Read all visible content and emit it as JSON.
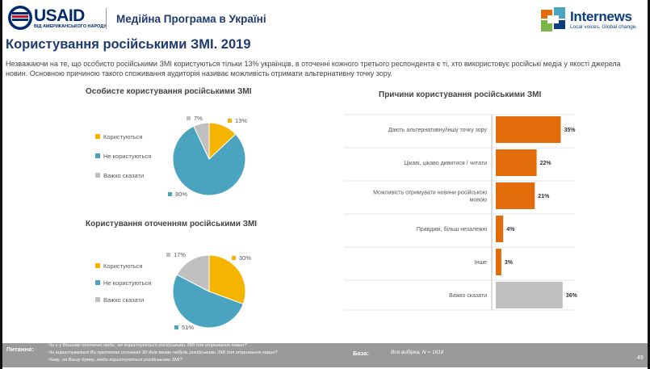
{
  "header": {
    "usaid_name": "USAID",
    "usaid_sub": "ВІД АМЕРИКАНСЬКОГО НАРОДУ",
    "program": "Медійна Програма в Україні",
    "partner_name": "Internews",
    "partner_tagline": "Local voices. Global change."
  },
  "title": "Користування російськими ЗМІ. 2019",
  "intro": "Незважаючи на те, що особисто російськими ЗМІ користуються тільки 13% українців, в оточенні кожного третього респондента є ті, хто використовує російські медіа у якості джерела новин. Основною причиною такого споживання аудиторія називає можливість отримати альтернативну точку зору.",
  "colors": {
    "use": "#f5b400",
    "not_use": "#4aa3bf",
    "hard": "#c0c0c0",
    "bar": "#e36c0a",
    "bar_hard": "#c0c0c0",
    "title": "#1f3a6e"
  },
  "chart_data": [
    {
      "type": "pie",
      "title": "Особисте користування російськими ЗМІ",
      "categories": [
        "Користуються",
        "Не користуються",
        "Важко сказати"
      ],
      "values": [
        13,
        80,
        7
      ],
      "labels": [
        "13%",
        "80%",
        "7%"
      ],
      "legend_position": "left"
    },
    {
      "type": "pie",
      "title": "Користування оточенням російськими ЗМІ",
      "categories": [
        "Користуються",
        "Не користуються",
        "Важко сказати"
      ],
      "values": [
        30,
        51,
        17
      ],
      "labels": [
        "30%",
        "51%",
        "17%"
      ],
      "legend_position": "left"
    },
    {
      "type": "bar",
      "orientation": "horizontal",
      "title": "Причини користування російськими ЗМІ",
      "categories": [
        "Дають альтернативну/іншу точку зору",
        "Цікаві, цікаво дивитися / читати",
        "Можливість отримувати новини російською мовою",
        "Правдиві, більш незалежні",
        "Інше",
        "Важко сказати"
      ],
      "category_lines": [
        [
          "Дають альтернативну/іншу точку зору"
        ],
        [
          "Цікаві, цікаво дивитися / читати"
        ],
        [
          "Можливість отримувати новини російською",
          "мовою"
        ],
        [
          "Правдиві, більш незалежні"
        ],
        [
          "Інше"
        ],
        [
          "Важко сказати"
        ]
      ],
      "values": [
        35,
        22,
        21,
        4,
        3,
        36
      ],
      "labels": [
        "35%",
        "22%",
        "21%",
        "4%",
        "3%",
        "36%"
      ],
      "xlim": [
        0,
        40
      ],
      "grid": false
    }
  ],
  "footer": {
    "question_label": "Питання:",
    "questions": [
      "Чи є у Вашому оточенні люди, які користуються російськими ЗМІ для отримання новин?",
      "Чи користувалися Ви протягом останніх 30 днів якими небудь російськими ЗМІ для отримання новин?",
      "Чому, на Вашу думку, люди користуються російськими ЗМІ?"
    ],
    "base_label": "База:",
    "base_value": "Вся вибірка,  N = 1618",
    "page": "49"
  }
}
